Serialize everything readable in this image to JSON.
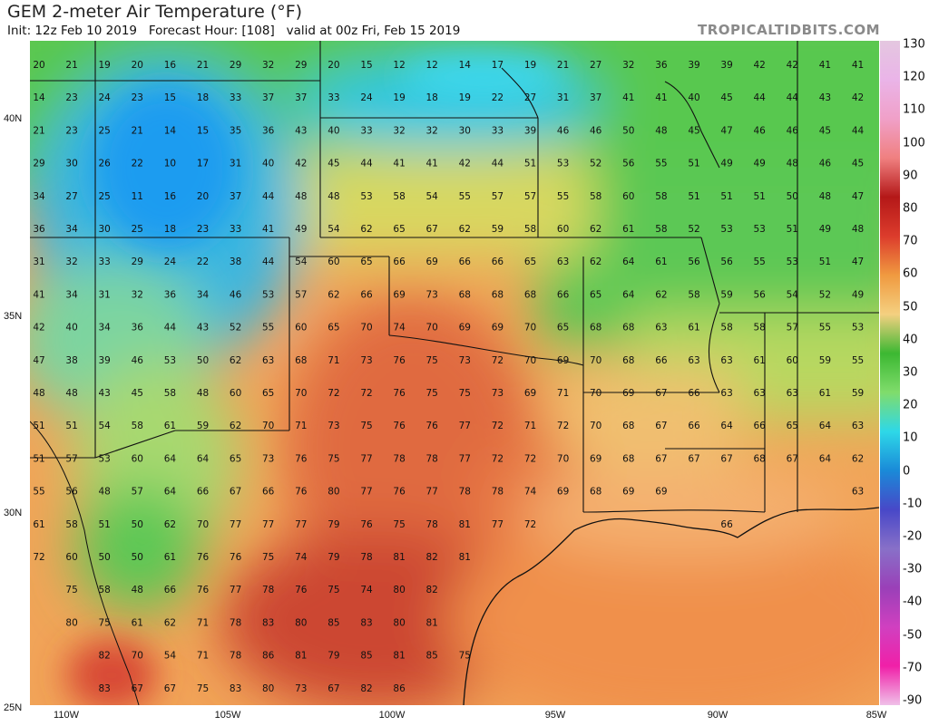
{
  "title": "GEM 2-meter Air Temperature (°F)",
  "subtitle": "Init: 12z Feb 10 2019   Forecast Hour: [108]   valid at 00z Fri, Feb 15 2019",
  "brand": "TROPICALTIDBITS.COM",
  "lat_labels": [
    "40N",
    "35N",
    "30N",
    "25N"
  ],
  "lon_labels": [
    "110W",
    "105W",
    "100W",
    "95W",
    "90W",
    "85W"
  ],
  "colorbar": {
    "ticks": [
      "130",
      "120",
      "110",
      "100",
      "90",
      "80",
      "70",
      "60",
      "50",
      "40",
      "30",
      "20",
      "10",
      "0",
      "-10",
      "-20",
      "-30",
      "-40",
      "-50",
      "-70",
      "-90"
    ],
    "colors": [
      "#e4c7e0",
      "#eab4e8",
      "#f0a0c8",
      "#f08080",
      "#b41818",
      "#dc3c2c",
      "#f09a40",
      "#f4d080",
      "#3cb832",
      "#80dc6c",
      "#2ed8e8",
      "#1a8ad8",
      "#4848c8",
      "#8870c8",
      "#9a40b8",
      "#d040c0",
      "#f020a8",
      "#f0c0e8"
    ]
  },
  "grid": {
    "rows": [
      [
        "20",
        "21",
        "19",
        "20",
        "16",
        "21",
        "29",
        "32",
        "29",
        "20",
        "15",
        "12",
        "12",
        "14",
        "17",
        "19",
        "21",
        "27",
        "32",
        "36",
        "39",
        "39",
        "42",
        "42",
        "41",
        "41"
      ],
      [
        "14",
        "23",
        "24",
        "23",
        "15",
        "18",
        "33",
        "37",
        "37",
        "33",
        "24",
        "19",
        "18",
        "19",
        "22",
        "27",
        "31",
        "37",
        "41",
        "41",
        "40",
        "45",
        "44",
        "44",
        "43",
        "42"
      ],
      [
        "21",
        "23",
        "25",
        "21",
        "14",
        "15",
        "35",
        "36",
        "43",
        "40",
        "33",
        "32",
        "32",
        "30",
        "33",
        "39",
        "46",
        "46",
        "50",
        "48",
        "45",
        "47",
        "46",
        "46",
        "45",
        "44"
      ],
      [
        "29",
        "30",
        "26",
        "22",
        "10",
        "17",
        "31",
        "40",
        "42",
        "45",
        "44",
        "41",
        "41",
        "42",
        "44",
        "51",
        "53",
        "52",
        "56",
        "55",
        "51",
        "49",
        "49",
        "48",
        "46",
        "45"
      ],
      [
        "34",
        "27",
        "25",
        "11",
        "16",
        "20",
        "37",
        "44",
        "48",
        "48",
        "53",
        "58",
        "54",
        "55",
        "57",
        "57",
        "55",
        "58",
        "60",
        "58",
        "51",
        "51",
        "51",
        "50",
        "48",
        "47"
      ],
      [
        "36",
        "34",
        "30",
        "25",
        "18",
        "23",
        "33",
        "41",
        "49",
        "54",
        "62",
        "65",
        "67",
        "62",
        "59",
        "58",
        "60",
        "62",
        "61",
        "58",
        "52",
        "53",
        "53",
        "51",
        "49",
        "48"
      ],
      [
        "31",
        "32",
        "33",
        "29",
        "24",
        "22",
        "38",
        "44",
        "54",
        "60",
        "65",
        "66",
        "69",
        "66",
        "66",
        "65",
        "63",
        "62",
        "64",
        "61",
        "56",
        "56",
        "55",
        "53",
        "51",
        "47"
      ],
      [
        "41",
        "34",
        "31",
        "32",
        "36",
        "34",
        "46",
        "53",
        "57",
        "62",
        "66",
        "69",
        "73",
        "68",
        "68",
        "68",
        "66",
        "65",
        "64",
        "62",
        "58",
        "59",
        "56",
        "54",
        "52",
        "49"
      ],
      [
        "42",
        "40",
        "34",
        "36",
        "44",
        "43",
        "52",
        "55",
        "60",
        "65",
        "70",
        "74",
        "70",
        "69",
        "69",
        "70",
        "65",
        "68",
        "68",
        "63",
        "61",
        "58",
        "58",
        "57",
        "55",
        "53"
      ],
      [
        "47",
        "38",
        "39",
        "46",
        "53",
        "50",
        "62",
        "63",
        "68",
        "71",
        "73",
        "76",
        "75",
        "73",
        "72",
        "70",
        "69",
        "70",
        "68",
        "66",
        "63",
        "63",
        "61",
        "60",
        "59",
        "55"
      ],
      [
        "48",
        "48",
        "43",
        "45",
        "58",
        "48",
        "60",
        "65",
        "70",
        "72",
        "72",
        "76",
        "75",
        "75",
        "73",
        "69",
        "71",
        "70",
        "69",
        "67",
        "66",
        "63",
        "63",
        "63",
        "61",
        "59"
      ],
      [
        "51",
        "51",
        "54",
        "58",
        "61",
        "59",
        "62",
        "70",
        "71",
        "73",
        "75",
        "76",
        "76",
        "77",
        "72",
        "71",
        "72",
        "70",
        "68",
        "67",
        "66",
        "64",
        "66",
        "65",
        "64",
        "63"
      ],
      [
        "51",
        "57",
        "53",
        "60",
        "64",
        "64",
        "65",
        "73",
        "76",
        "75",
        "77",
        "78",
        "78",
        "77",
        "72",
        "72",
        "70",
        "69",
        "68",
        "67",
        "67",
        "67",
        "68",
        "67",
        "64",
        "62"
      ],
      [
        "55",
        "56",
        "48",
        "57",
        "64",
        "66",
        "67",
        "66",
        "76",
        "80",
        "77",
        "76",
        "77",
        "78",
        "78",
        "74",
        "69",
        "68",
        "69",
        "69",
        "",
        "",
        "",
        "",
        "",
        "63"
      ],
      [
        "61",
        "58",
        "51",
        "50",
        "62",
        "70",
        "77",
        "77",
        "77",
        "79",
        "76",
        "75",
        "78",
        "81",
        "77",
        "72",
        "",
        "",
        "",
        "",
        "",
        "66",
        "",
        "",
        "",
        ""
      ],
      [
        "72",
        "60",
        "50",
        "50",
        "61",
        "76",
        "76",
        "75",
        "74",
        "79",
        "78",
        "81",
        "82",
        "81",
        "",
        "",
        "",
        "",
        "",
        "",
        "",
        "",
        "",
        "",
        "",
        ""
      ],
      [
        "",
        "75",
        "58",
        "48",
        "66",
        "76",
        "77",
        "78",
        "76",
        "75",
        "74",
        "80",
        "82",
        "",
        "",
        "",
        "",
        "",
        "",
        "",
        "",
        "",
        "",
        "",
        "",
        ""
      ],
      [
        "",
        "80",
        "75",
        "61",
        "62",
        "71",
        "78",
        "83",
        "80",
        "85",
        "83",
        "80",
        "81",
        "",
        "",
        "",
        "",
        "",
        "",
        "",
        "",
        "",
        "",
        "",
        "",
        ""
      ],
      [
        "",
        "",
        "82",
        "70",
        "54",
        "71",
        "78",
        "86",
        "81",
        "79",
        "85",
        "81",
        "85",
        "75",
        "",
        "",
        "",
        "",
        "",
        "",
        "",
        "",
        "",
        "",
        "",
        ""
      ],
      [
        "",
        "",
        "83",
        "67",
        "67",
        "75",
        "83",
        "80",
        "73",
        "67",
        "82",
        "86",
        "",
        "",
        "",
        "",
        "",
        "",
        "",
        "",
        "",
        "",
        "",
        "",
        "",
        ""
      ]
    ]
  }
}
